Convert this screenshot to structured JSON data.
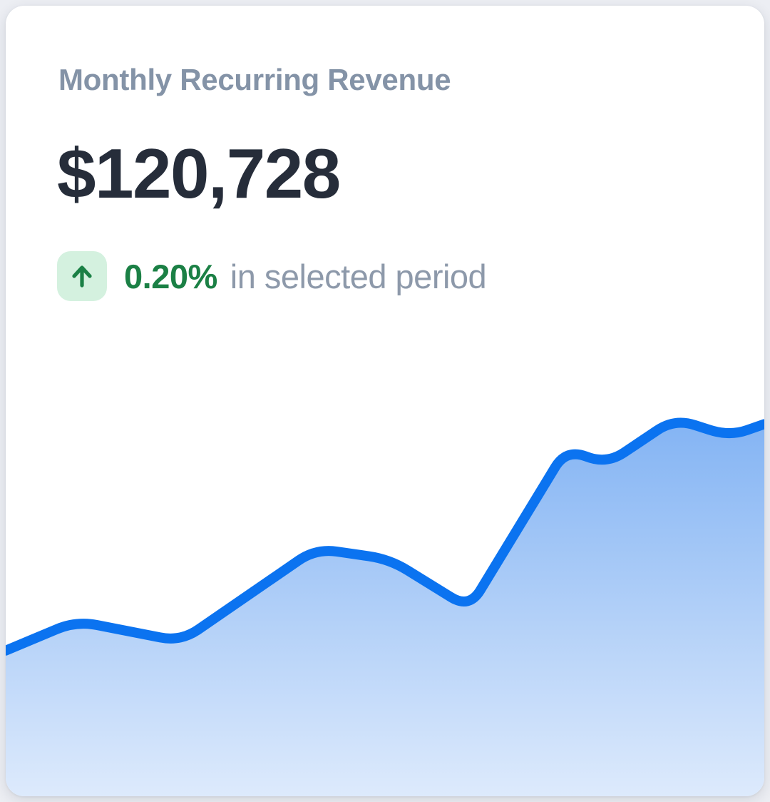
{
  "card": {
    "title": "Monthly Recurring Revenue",
    "value": "$120,728",
    "delta": {
      "direction": "up",
      "percent": "0.20%",
      "caption": "in selected period"
    }
  },
  "icons": {
    "trend_arrow": "arrow-up"
  },
  "colors": {
    "page_bg": "#eceef3",
    "card_bg": "#ffffff",
    "title_text": "#8493a7",
    "value_text": "#262d3a",
    "badge_bg": "#d4f1df",
    "badge_arrow": "#1a8045",
    "delta_text": "#1b8045",
    "caption_text": "#8d99aa",
    "line": "#0b73f0",
    "area_top": "#7fb1f3",
    "area_bottom": "#ddeafc"
  },
  "chart_data": {
    "type": "area",
    "title": "Monthly Recurring Revenue trend",
    "xlabel": "",
    "ylabel": "",
    "axes_visible": false,
    "grid": false,
    "legend": false,
    "x_range_pct": [
      0,
      100
    ],
    "y_range_pct": [
      0,
      100
    ],
    "points": [
      [
        0,
        37.0
      ],
      [
        9.3,
        44.5
      ],
      [
        23.1,
        39.3
      ],
      [
        40.9,
        62.9
      ],
      [
        50.6,
        60.2
      ],
      [
        61.1,
        47.7
      ],
      [
        73.9,
        88.2
      ],
      [
        79.2,
        84.3
      ],
      [
        88.2,
        95.9
      ],
      [
        95.4,
        91.4
      ],
      [
        100,
        94.5
      ]
    ],
    "line_width": 14,
    "corner_radius": 30
  }
}
